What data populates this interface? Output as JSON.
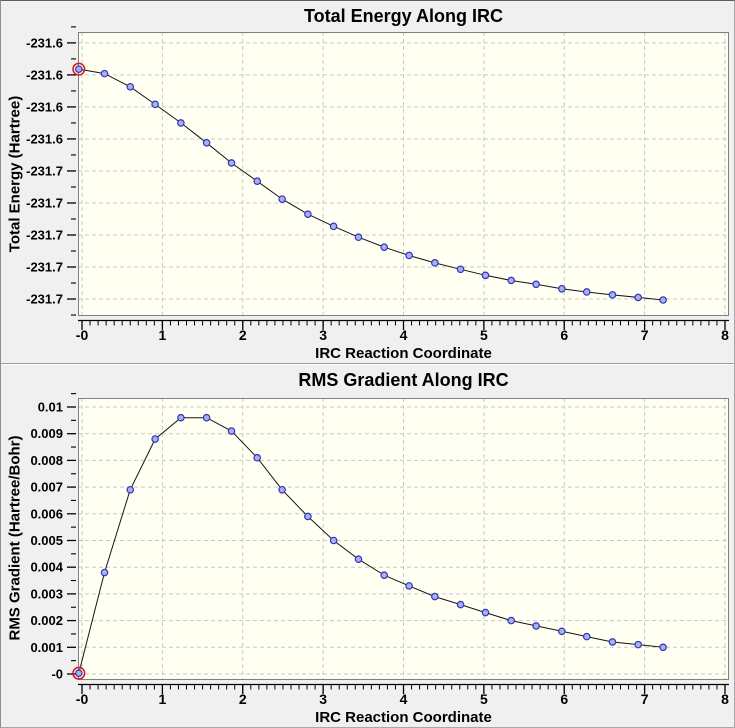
{
  "style": {
    "window_bg": "#f0f0f0",
    "plot_bg": "#fffff2",
    "grid_color": "#c8c8c8",
    "frame_color": "#7f7f7f",
    "axis_color": "#000000",
    "line_color": "#151515",
    "marker_fill": "#a9b2e8",
    "marker_stroke": "#3333bb",
    "selected_ring_color": "#dd1414"
  },
  "chart_data": [
    {
      "type": "line",
      "title": "Total Energy Along IRC",
      "xlabel": "IRC Reaction Coordinate",
      "ylabel": "Total Energy (Hartree)",
      "grid": true,
      "legend_position": "none",
      "x_tick_labels": [
        "-0",
        "1",
        "2",
        "3",
        "4",
        "5",
        "6",
        "7",
        "8"
      ],
      "x_tick_values": [
        0,
        1,
        2,
        3,
        4,
        5,
        6,
        7,
        8
      ],
      "x_minor_step": 0.1,
      "y_tick_labels": [
        "-231.6",
        "-231.6",
        "-231.6",
        "-231.6",
        "-231.7",
        "-231.7",
        "-231.7",
        "-231.7",
        "-231.7"
      ],
      "y_tick_values": [
        -231.61,
        -231.62,
        -231.63,
        -231.64,
        -231.65,
        -231.66,
        -231.67,
        -231.68,
        -231.69
      ],
      "xlim": [
        -0.05,
        8.05
      ],
      "ylim": [
        -231.6953,
        -231.6066
      ],
      "selected_point_index": 0,
      "x": [
        -0.04,
        0.28,
        0.6,
        0.91,
        1.23,
        1.55,
        1.86,
        2.18,
        2.49,
        2.81,
        3.13,
        3.44,
        3.76,
        4.07,
        4.39,
        4.71,
        5.02,
        5.34,
        5.65,
        5.97,
        6.28,
        6.6,
        6.92,
        7.23
      ],
      "y": [
        -231.6182,
        -231.6196,
        -231.6237,
        -231.6292,
        -231.635,
        -231.6412,
        -231.6475,
        -231.6532,
        -231.6588,
        -231.6635,
        -231.6673,
        -231.6707,
        -231.6738,
        -231.6764,
        -231.6787,
        -231.6807,
        -231.6826,
        -231.6842,
        -231.6854,
        -231.6868,
        -231.6878,
        -231.6887,
        -231.6895,
        -231.6903
      ]
    },
    {
      "type": "line",
      "title": "RMS Gradient Along IRC",
      "xlabel": "IRC Reaction Coordinate",
      "ylabel": "RMS Gradient (Hartree/Bohr)",
      "grid": true,
      "legend_position": "none",
      "x_tick_labels": [
        "-0",
        "1",
        "2",
        "3",
        "4",
        "5",
        "6",
        "7",
        "8"
      ],
      "x_tick_values": [
        0,
        1,
        2,
        3,
        4,
        5,
        6,
        7,
        8
      ],
      "x_minor_step": 0.1,
      "y_tick_labels": [
        "0.01",
        "0.009",
        "0.008",
        "0.007",
        "0.006",
        "0.005",
        "0.004",
        "0.003",
        "0.002",
        "0.001",
        "-0"
      ],
      "y_tick_values": [
        0.01,
        0.009,
        0.008,
        0.007,
        0.006,
        0.005,
        0.004,
        0.003,
        0.002,
        0.001,
        0
      ],
      "xlim": [
        -0.05,
        8.05
      ],
      "ylim": [
        -0.000225,
        0.010337
      ],
      "selected_point_index": 0,
      "x": [
        -0.04,
        0.28,
        0.6,
        0.91,
        1.23,
        1.55,
        1.86,
        2.18,
        2.49,
        2.81,
        3.13,
        3.44,
        3.76,
        4.07,
        4.39,
        4.71,
        5.02,
        5.34,
        5.65,
        5.97,
        6.28,
        6.6,
        6.92,
        7.23
      ],
      "y": [
        3e-05,
        0.0038,
        0.0069,
        0.0088,
        0.0096,
        0.0096,
        0.0091,
        0.0081,
        0.0069,
        0.0059,
        0.005,
        0.0043,
        0.0037,
        0.0033,
        0.0029,
        0.0026,
        0.0023,
        0.002,
        0.0018,
        0.0016,
        0.0014,
        0.0012,
        0.0011,
        0.001
      ]
    }
  ]
}
